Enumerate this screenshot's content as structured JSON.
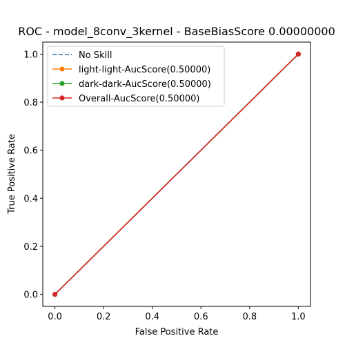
{
  "chart_data": {
    "type": "line",
    "title": "ROC - model_8conv_3kernel - BaseBiasScore 0.00000000",
    "xlabel": "False Positive Rate",
    "ylabel": "True Positive Rate",
    "xlim": [
      -0.05,
      1.05
    ],
    "ylim": [
      -0.05,
      1.05
    ],
    "xticks": [
      "0.0",
      "0.2",
      "0.4",
      "0.6",
      "0.8",
      "1.0"
    ],
    "yticks": [
      "0.0",
      "0.2",
      "0.4",
      "0.6",
      "0.8",
      "1.0"
    ],
    "legend_position": "top-left",
    "grid": false,
    "series": [
      {
        "name": "No Skill",
        "x": [
          0,
          1
        ],
        "y": [
          0,
          1
        ],
        "color": "#1f77b4",
        "style": "dashed",
        "marker": "none"
      },
      {
        "name": "light-light-AucScore(0.50000)",
        "x": [
          0,
          1
        ],
        "y": [
          0,
          1
        ],
        "color": "#ff7f0e",
        "style": "solid",
        "marker": "circle"
      },
      {
        "name": "dark-dark-AucScore(0.50000)",
        "x": [
          0,
          1
        ],
        "y": [
          0,
          1
        ],
        "color": "#2ca02c",
        "style": "solid",
        "marker": "circle"
      },
      {
        "name": "Overall-AucScore(0.50000)",
        "x": [
          0,
          1
        ],
        "y": [
          0,
          1
        ],
        "color": "#d62728",
        "style": "solid",
        "marker": "circle"
      }
    ]
  }
}
